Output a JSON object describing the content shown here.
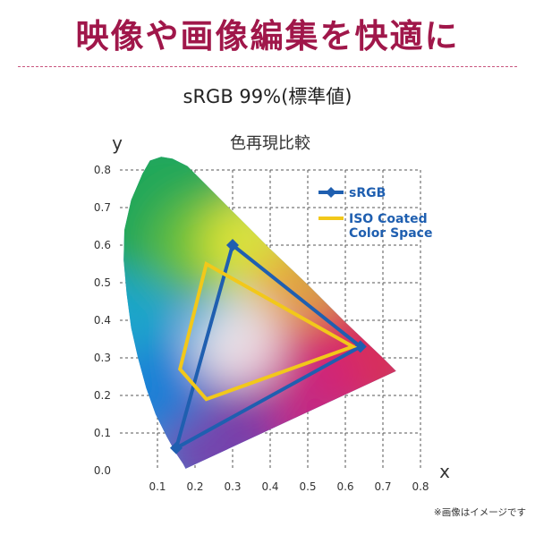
{
  "header": {
    "title": "映像や画像編集を快適に",
    "subtitle": "sRGB 99%(標準値)"
  },
  "footer": {
    "note": "※画像はイメージです"
  },
  "colors": {
    "headline": "#a0174a",
    "srgb": "#1f5fb0",
    "iso": "#f2c81a",
    "divider": "#c9567e"
  },
  "chart_data": {
    "type": "scatter",
    "title": "色再現比較",
    "xlabel": "x",
    "ylabel": "y",
    "xlim": [
      0,
      0.8
    ],
    "ylim": [
      0,
      0.8
    ],
    "x_ticks": [
      "0.1",
      "0.2",
      "0.3",
      "0.4",
      "0.5",
      "0.6",
      "0.7",
      "0.8"
    ],
    "y_ticks": [
      "0.0",
      "0.1",
      "0.2",
      "0.3",
      "0.4",
      "0.5",
      "0.6",
      "0.7",
      "0.8"
    ],
    "grid": true,
    "legend_position": "top-right",
    "series": [
      {
        "name": "sRGB",
        "color": "#1f5fb0",
        "marker": "diamond",
        "closed": true,
        "points": [
          [
            0.3,
            0.6
          ],
          [
            0.64,
            0.33
          ],
          [
            0.15,
            0.06
          ]
        ]
      },
      {
        "name": "ISO Coated Color Space",
        "legend_lines": [
          "ISO Coated",
          "Color Space"
        ],
        "color": "#f2c81a",
        "marker": "none",
        "closed": true,
        "points": [
          [
            0.23,
            0.55
          ],
          [
            0.62,
            0.33
          ],
          [
            0.23,
            0.19
          ],
          [
            0.16,
            0.27
          ]
        ]
      }
    ],
    "spectral_locus": [
      [
        0.175,
        0.005
      ],
      [
        0.168,
        0.018
      ],
      [
        0.15,
        0.045
      ],
      [
        0.125,
        0.09
      ],
      [
        0.095,
        0.15
      ],
      [
        0.07,
        0.22
      ],
      [
        0.048,
        0.3
      ],
      [
        0.03,
        0.38
      ],
      [
        0.018,
        0.47
      ],
      [
        0.01,
        0.56
      ],
      [
        0.012,
        0.64
      ],
      [
        0.03,
        0.72
      ],
      [
        0.06,
        0.79
      ],
      [
        0.08,
        0.825
      ],
      [
        0.11,
        0.835
      ],
      [
        0.14,
        0.83
      ],
      [
        0.18,
        0.81
      ],
      [
        0.23,
        0.76
      ],
      [
        0.3,
        0.69
      ],
      [
        0.4,
        0.59
      ],
      [
        0.5,
        0.495
      ],
      [
        0.6,
        0.395
      ],
      [
        0.7,
        0.3
      ],
      [
        0.735,
        0.265
      ]
    ]
  }
}
